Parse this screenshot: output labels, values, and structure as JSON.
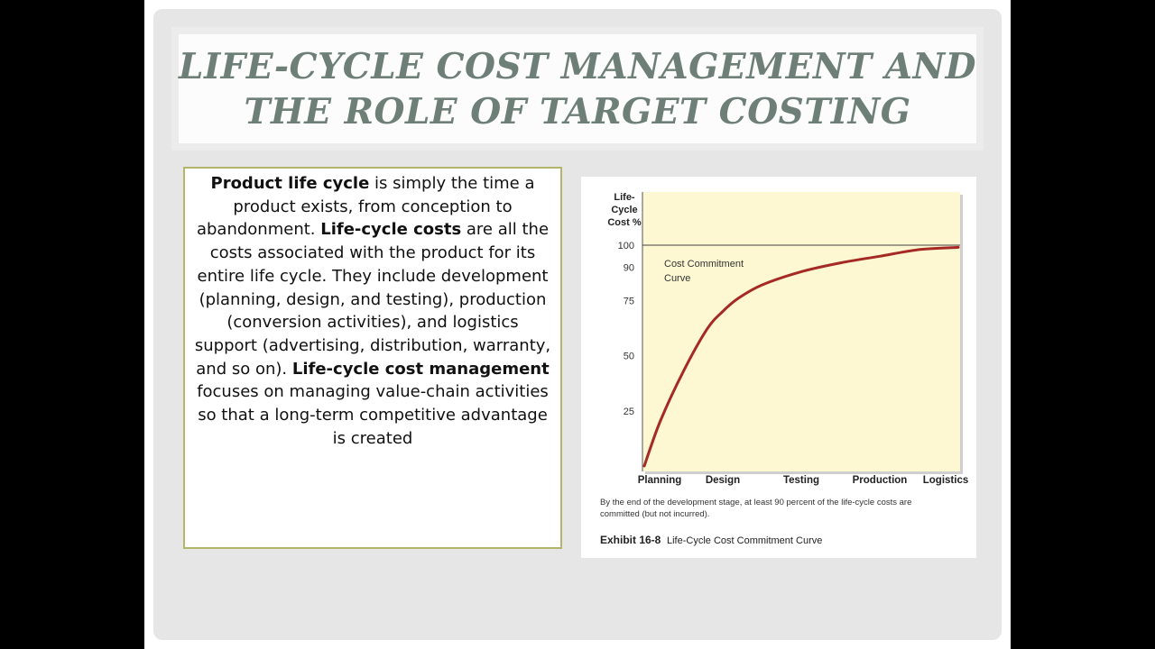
{
  "slide": {
    "title_line1": "LIFE-CYCLE COST MANAGEMENT AND",
    "title_line2": "THE ROLE OF TARGET COSTING"
  },
  "body": {
    "term1": "Product life cycle",
    "text1": " is simply the time a product exists, from conception to abandonment. ",
    "term2": "Life-cycle costs",
    "text2": " are all the costs associated with the product for its entire life cycle. They include development (planning, design, and testing), production (conversion activities), and logistics support (advertising, distribution, warranty, and so on). ",
    "term3": "Life-cycle cost management",
    "text3": " focuses on managing value-chain activities so that a long-term competitive advantage is created"
  },
  "chart_data": {
    "type": "line",
    "ylabel_lines": [
      "Life-",
      "Cycle",
      "Cost %"
    ],
    "yticks": [
      100,
      90,
      75,
      50,
      25
    ],
    "categories": [
      "Planning",
      "Design",
      "Testing",
      "Production",
      "Logistics"
    ],
    "ylim": [
      0,
      110
    ],
    "reference_line": 100,
    "curve_label_lines": [
      "Cost Commitment",
      "Curve"
    ],
    "series": [
      {
        "x": [
          0,
          0.2,
          0.5,
          0.8,
          1.0,
          1.2,
          1.5,
          2.0,
          2.5,
          3.0,
          3.5,
          4.0
        ],
        "values": [
          0,
          20,
          43,
          62,
          70,
          76,
          82,
          88,
          92,
          95,
          98,
          99
        ],
        "color": "#a52a25"
      }
    ],
    "caption_lines": [
      "By the end of the development stage, at least 90 percent of the life-cycle costs are",
      "committed (but not incurred)."
    ],
    "exhibit_label": "Exhibit 16-8",
    "exhibit_title": "Life-Cycle Cost Commitment Curve",
    "plot_background": "#fdf8d2"
  }
}
